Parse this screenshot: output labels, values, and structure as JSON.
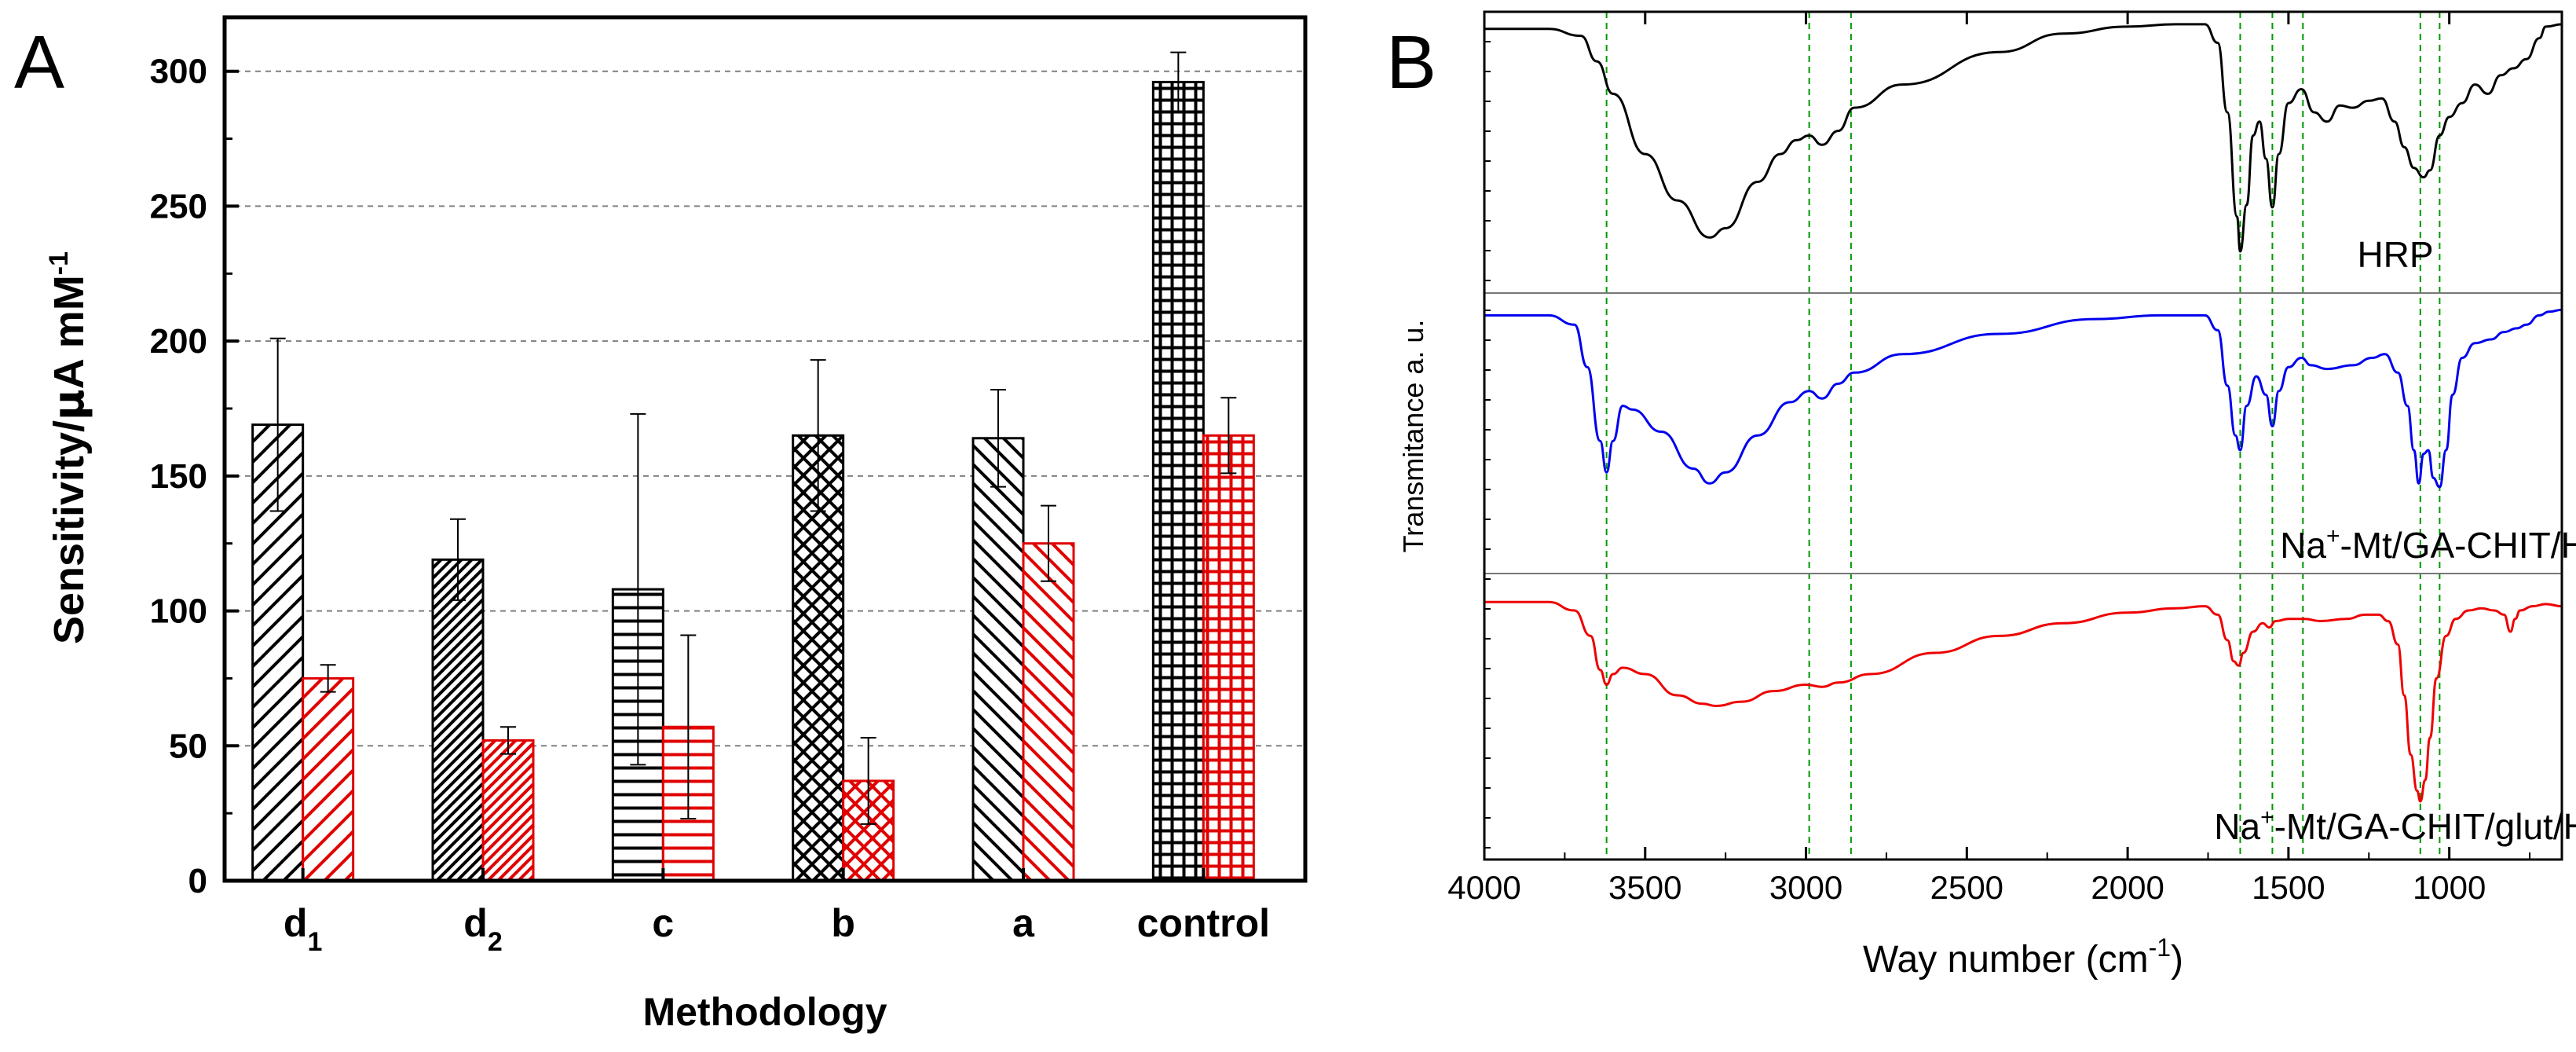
{
  "panel_a": {
    "letter": "A",
    "ylabel_main": "Sensitivity/",
    "ylabel_unit": "A mM",
    "ylabel_mu": "μ",
    "ylabel_exp": "-1",
    "xlabel": "Methodology"
  },
  "panel_b": {
    "letter": "B",
    "ylabel": "Transmitance a. u.",
    "xlabel_main": "Way number (cm",
    "xlabel_exp": "-1",
    "xlabel_close": ")"
  },
  "colors": {
    "series1": "#000000",
    "series2": "#e00000",
    "grid_dash": "#808080",
    "guide_green": "#009900",
    "trace_hrp": "#000000",
    "trace_phys": "#0000ee",
    "trace_glut": "#ee0000"
  },
  "chart_data": [
    {
      "type": "bar",
      "panel": "A",
      "categories": [
        {
          "base": "d",
          "sub": "1"
        },
        {
          "base": "d",
          "sub": "2"
        },
        {
          "base": "c",
          "sub": ""
        },
        {
          "base": "b",
          "sub": ""
        },
        {
          "base": "a",
          "sub": ""
        },
        {
          "base": "control",
          "sub": ""
        }
      ],
      "series": [
        {
          "values": [
            169,
            119,
            108,
            165,
            164,
            296
          ],
          "errors": [
            32,
            15,
            65,
            28,
            18,
            11
          ]
        },
        {
          "values": [
            75,
            52,
            57,
            37,
            125,
            165
          ],
          "errors": [
            5,
            5,
            34,
            16,
            14,
            14
          ]
        }
      ],
      "patterns": [
        "diag-right",
        "diag-right-dense",
        "horizontal",
        "crosshatch",
        "diag-left",
        "grid"
      ],
      "ylim": [
        0,
        320
      ],
      "yticks": [
        0,
        50,
        100,
        150,
        200,
        250,
        300
      ],
      "grid": "dashed horizontal",
      "xlabel": "Methodology",
      "ylabel": "Sensitivity/μA mM-1"
    },
    {
      "type": "line",
      "panel": "B",
      "xlim": [
        4000,
        650
      ],
      "xticks": [
        4000,
        3500,
        3000,
        2500,
        2000,
        1500,
        1000
      ],
      "xlabel": "Way number (cm-1)",
      "ylabel": "Transmitance a. u.",
      "guide_lines": [
        3620,
        2990,
        2860,
        1650,
        1550,
        1455,
        1090,
        1030
      ],
      "series": [
        {
          "text": "HRP",
          "color": "#000000",
          "points": [
            [
              4000,
              0.96
            ],
            [
              3800,
              0.96
            ],
            [
              3700,
              0.93
            ],
            [
              3650,
              0.82
            ],
            [
              3600,
              0.68
            ],
            [
              3500,
              0.42
            ],
            [
              3400,
              0.22
            ],
            [
              3300,
              0.06
            ],
            [
              3250,
              0.1
            ],
            [
              3150,
              0.3
            ],
            [
              3080,
              0.42
            ],
            [
              3030,
              0.48
            ],
            [
              2990,
              0.5
            ],
            [
              2950,
              0.46
            ],
            [
              2900,
              0.52
            ],
            [
              2850,
              0.62
            ],
            [
              2700,
              0.72
            ],
            [
              2400,
              0.86
            ],
            [
              2200,
              0.94
            ],
            [
              2000,
              0.97
            ],
            [
              1850,
              0.98
            ],
            [
              1760,
              0.98
            ],
            [
              1720,
              0.9
            ],
            [
              1690,
              0.6
            ],
            [
              1660,
              0.15
            ],
            [
              1650,
              0.0
            ],
            [
              1630,
              0.2
            ],
            [
              1610,
              0.5
            ],
            [
              1590,
              0.56
            ],
            [
              1570,
              0.4
            ],
            [
              1550,
              0.19
            ],
            [
              1530,
              0.42
            ],
            [
              1500,
              0.64
            ],
            [
              1460,
              0.7
            ],
            [
              1420,
              0.6
            ],
            [
              1380,
              0.56
            ],
            [
              1340,
              0.63
            ],
            [
              1300,
              0.62
            ],
            [
              1250,
              0.65
            ],
            [
              1210,
              0.66
            ],
            [
              1170,
              0.56
            ],
            [
              1140,
              0.45
            ],
            [
              1110,
              0.36
            ],
            [
              1080,
              0.32
            ],
            [
              1060,
              0.35
            ],
            [
              1030,
              0.5
            ],
            [
              1000,
              0.58
            ],
            [
              960,
              0.64
            ],
            [
              920,
              0.72
            ],
            [
              880,
              0.68
            ],
            [
              840,
              0.76
            ],
            [
              800,
              0.79
            ],
            [
              760,
              0.83
            ],
            [
              720,
              0.92
            ],
            [
              700,
              0.97
            ],
            [
              650,
              0.98
            ]
          ]
        },
        {
          "text": "Na+-Mt/GA-CHIT/HRP",
          "text_sub": "phys",
          "color": "#0000ee",
          "points": [
            [
              4000,
              0.93
            ],
            [
              3800,
              0.93
            ],
            [
              3720,
              0.88
            ],
            [
              3680,
              0.65
            ],
            [
              3640,
              0.25
            ],
            [
              3620,
              0.08
            ],
            [
              3600,
              0.25
            ],
            [
              3570,
              0.44
            ],
            [
              3540,
              0.42
            ],
            [
              3450,
              0.3
            ],
            [
              3350,
              0.1
            ],
            [
              3300,
              0.02
            ],
            [
              3250,
              0.08
            ],
            [
              3150,
              0.28
            ],
            [
              3050,
              0.46
            ],
            [
              2990,
              0.52
            ],
            [
              2950,
              0.48
            ],
            [
              2900,
              0.56
            ],
            [
              2850,
              0.62
            ],
            [
              2700,
              0.72
            ],
            [
              2400,
              0.83
            ],
            [
              2100,
              0.91
            ],
            [
              1900,
              0.93
            ],
            [
              1760,
              0.93
            ],
            [
              1720,
              0.85
            ],
            [
              1690,
              0.55
            ],
            [
              1665,
              0.28
            ],
            [
              1650,
              0.2
            ],
            [
              1630,
              0.44
            ],
            [
              1600,
              0.6
            ],
            [
              1570,
              0.5
            ],
            [
              1550,
              0.33
            ],
            [
              1530,
              0.52
            ],
            [
              1500,
              0.65
            ],
            [
              1460,
              0.7
            ],
            [
              1430,
              0.66
            ],
            [
              1380,
              0.64
            ],
            [
              1300,
              0.66
            ],
            [
              1240,
              0.7
            ],
            [
              1200,
              0.72
            ],
            [
              1160,
              0.62
            ],
            [
              1130,
              0.44
            ],
            [
              1110,
              0.2
            ],
            [
              1095,
              0.02
            ],
            [
              1080,
              0.18
            ],
            [
              1065,
              0.2
            ],
            [
              1050,
              0.05
            ],
            [
              1030,
              0.0
            ],
            [
              1010,
              0.2
            ],
            [
              990,
              0.5
            ],
            [
              960,
              0.7
            ],
            [
              920,
              0.78
            ],
            [
              870,
              0.8
            ],
            [
              830,
              0.84
            ],
            [
              790,
              0.86
            ],
            [
              760,
              0.88
            ],
            [
              720,
              0.93
            ],
            [
              690,
              0.95
            ],
            [
              650,
              0.96
            ]
          ]
        },
        {
          "text": "Na+-Mt/GA-CHIT/glut/HRP",
          "color": "#ee0000",
          "points": [
            [
              4000,
              0.94
            ],
            [
              3800,
              0.94
            ],
            [
              3720,
              0.9
            ],
            [
              3670,
              0.78
            ],
            [
              3640,
              0.62
            ],
            [
              3620,
              0.55
            ],
            [
              3600,
              0.6
            ],
            [
              3570,
              0.63
            ],
            [
              3500,
              0.6
            ],
            [
              3400,
              0.5
            ],
            [
              3320,
              0.46
            ],
            [
              3280,
              0.45
            ],
            [
              3200,
              0.47
            ],
            [
              3100,
              0.52
            ],
            [
              3000,
              0.55
            ],
            [
              2950,
              0.54
            ],
            [
              2900,
              0.56
            ],
            [
              2800,
              0.6
            ],
            [
              2600,
              0.7
            ],
            [
              2400,
              0.78
            ],
            [
              2200,
              0.84
            ],
            [
              2000,
              0.89
            ],
            [
              1850,
              0.91
            ],
            [
              1760,
              0.92
            ],
            [
              1720,
              0.88
            ],
            [
              1690,
              0.76
            ],
            [
              1670,
              0.66
            ],
            [
              1655,
              0.64
            ],
            [
              1640,
              0.7
            ],
            [
              1610,
              0.8
            ],
            [
              1580,
              0.84
            ],
            [
              1560,
              0.82
            ],
            [
              1540,
              0.85
            ],
            [
              1500,
              0.86
            ],
            [
              1450,
              0.86
            ],
            [
              1400,
              0.85
            ],
            [
              1320,
              0.86
            ],
            [
              1260,
              0.88
            ],
            [
              1220,
              0.88
            ],
            [
              1190,
              0.85
            ],
            [
              1160,
              0.74
            ],
            [
              1140,
              0.5
            ],
            [
              1120,
              0.22
            ],
            [
              1100,
              0.05
            ],
            [
              1090,
              0.0
            ],
            [
              1075,
              0.1
            ],
            [
              1060,
              0.3
            ],
            [
              1040,
              0.58
            ],
            [
              1010,
              0.78
            ],
            [
              980,
              0.86
            ],
            [
              940,
              0.9
            ],
            [
              900,
              0.91
            ],
            [
              860,
              0.9
            ],
            [
              830,
              0.88
            ],
            [
              810,
              0.8
            ],
            [
              795,
              0.86
            ],
            [
              780,
              0.9
            ],
            [
              740,
              0.92
            ],
            [
              700,
              0.93
            ],
            [
              650,
              0.92
            ]
          ]
        }
      ]
    }
  ]
}
